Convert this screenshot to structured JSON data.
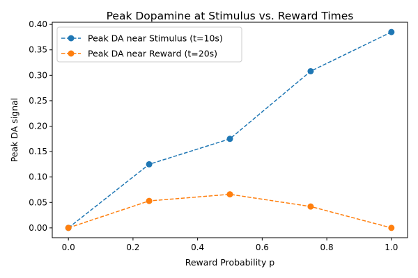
{
  "chart_data": {
    "type": "line",
    "title": "Peak Dopamine at Stimulus vs. Reward Times",
    "xlabel": "Reward Probability p",
    "ylabel": "Peak DA signal",
    "xlim": [
      -0.05,
      1.05
    ],
    "ylim": [
      -0.0193,
      0.4043
    ],
    "xticks": [
      0.0,
      0.2,
      0.4,
      0.6,
      0.8,
      1.0
    ],
    "xtick_labels": [
      "0.0",
      "0.2",
      "0.4",
      "0.6",
      "0.8",
      "1.0"
    ],
    "yticks": [
      0.0,
      0.05,
      0.1,
      0.15,
      0.2,
      0.25,
      0.3,
      0.35,
      0.4
    ],
    "ytick_labels": [
      "0.00",
      "0.05",
      "0.10",
      "0.15",
      "0.20",
      "0.25",
      "0.30",
      "0.35",
      "0.40"
    ],
    "grid": false,
    "legend_position": "upper-left",
    "x": [
      0.0,
      0.25,
      0.5,
      0.75,
      1.0
    ],
    "series": [
      {
        "name": "Peak DA near Stimulus (t=10s)",
        "color": "#1f77b4",
        "values": [
          0.0,
          0.125,
          0.175,
          0.308,
          0.385
        ]
      },
      {
        "name": "Peak DA near Reward (t=20s)",
        "color": "#ff7f0e",
        "values": [
          0.0,
          0.053,
          0.066,
          0.042,
          0.0
        ]
      }
    ]
  }
}
